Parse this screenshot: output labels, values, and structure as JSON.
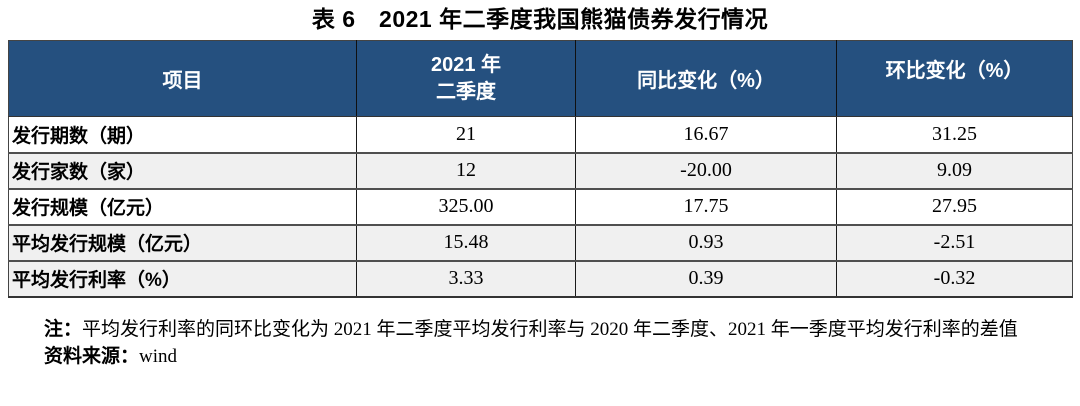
{
  "title": "表 6　2021 年二季度我国熊猫债券发行情况",
  "table": {
    "columns": {
      "col1": "项目",
      "col2_line1": "2021 年",
      "col2_line2": "二季度",
      "col3": "同比变化（%）",
      "col4": "环比变化（%）"
    },
    "rows": [
      {
        "label": "发行期数（期）",
        "q2": "21",
        "yoy": "16.67",
        "qoq": "31.25",
        "shaded": false
      },
      {
        "label": "发行家数（家）",
        "q2": "12",
        "yoy": "-20.00",
        "qoq": "9.09",
        "shaded": true
      },
      {
        "label": "发行规模（亿元）",
        "q2": "325.00",
        "yoy": "17.75",
        "qoq": "27.95",
        "shaded": false
      },
      {
        "label": "平均发行规模（亿元）",
        "q2": "15.48",
        "yoy": "0.93",
        "qoq": "-2.51",
        "shaded": true
      },
      {
        "label": "平均发行利率（%）",
        "q2": "3.33",
        "yoy": "0.39",
        "qoq": "-0.32",
        "shaded": true
      }
    ]
  },
  "notes": {
    "note_prefix": "注：",
    "note_text": "平均发行利率的同环比变化为 2021 年二季度平均发行利率与 2020 年二季度、2021 年一季度平均发行利率的差值",
    "source_prefix": "资料来源：",
    "source_value": "wind"
  },
  "colors": {
    "header_bg": "#25507F",
    "header_text": "#FFFFFF",
    "shaded_row_bg": "#F0F0F0",
    "body_text": "#000000"
  }
}
